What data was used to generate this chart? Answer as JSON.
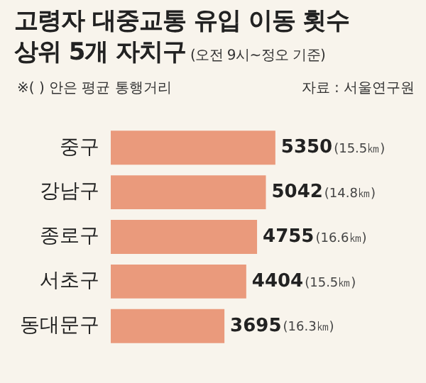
{
  "chart_data": {
    "type": "bar",
    "orientation": "horizontal",
    "title": "고령자 대중교통 유입 이동 횟수\n상위 5개 자치구",
    "subtitle": "(오전 9시~정오 기준)",
    "annotations": [
      "※( ) 안은 평균 통행거리",
      "자료 : 서울연구원"
    ],
    "categories": [
      "중구",
      "강남구",
      "종로구",
      "서초구",
      "동대문구"
    ],
    "values": [
      5350,
      5042,
      4755,
      4404,
      3695
    ],
    "value_labels": [
      "5350(15.5㎞)",
      "5042(14.8㎞)",
      "4755(16.6㎞)",
      "4404(15.5㎞)",
      "3695(16.3㎞)"
    ],
    "color": "#ea9a7c",
    "tick_labels": "y",
    "grid": false,
    "legend": false
  }
}
